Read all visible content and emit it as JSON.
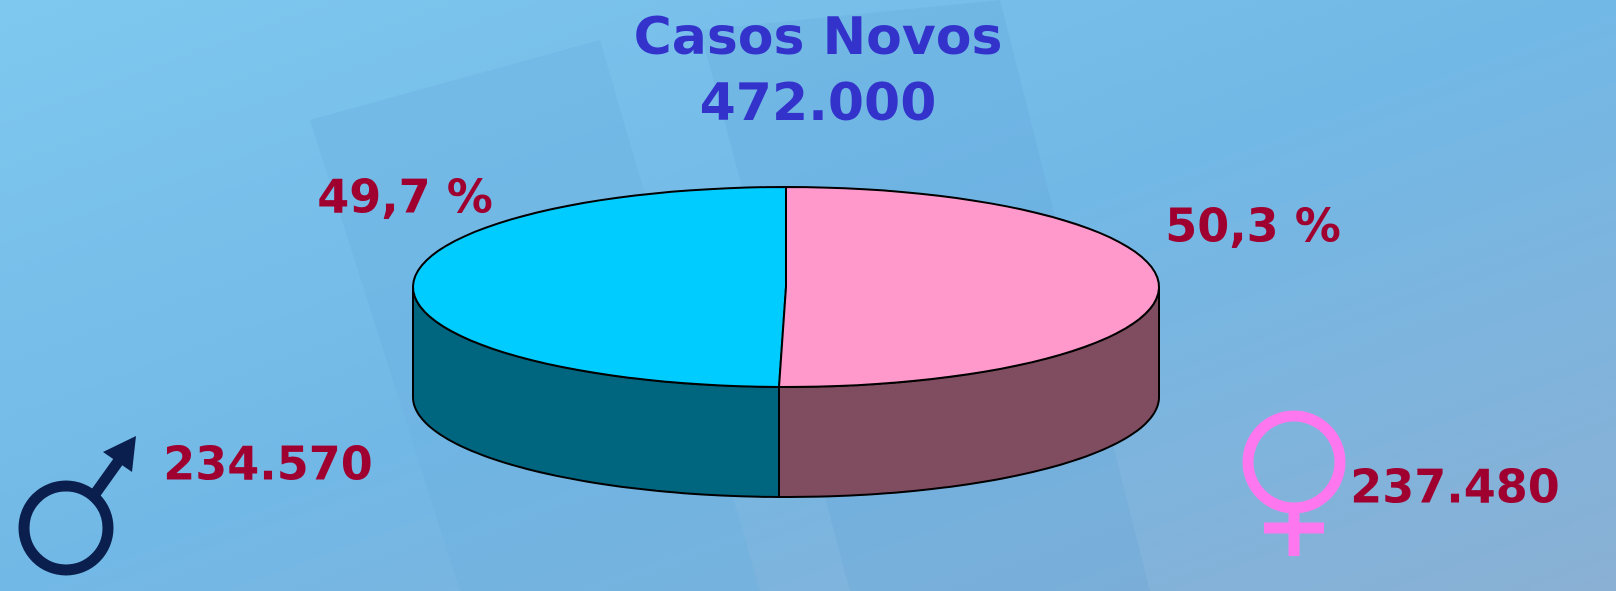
{
  "chart_data": {
    "type": "pie",
    "title": "Casos Novos",
    "subtitle": "472.000",
    "values": [
      49.7,
      50.3
    ],
    "value_labels": [
      "49,7 %",
      "50,3 %"
    ],
    "colors": [
      "#00ccff",
      "#ff99cc"
    ],
    "side_colors": [
      "#006680",
      "#804d60"
    ],
    "counts": [
      234570,
      237480
    ],
    "count_labels": [
      "234.570",
      "237.480"
    ]
  }
}
